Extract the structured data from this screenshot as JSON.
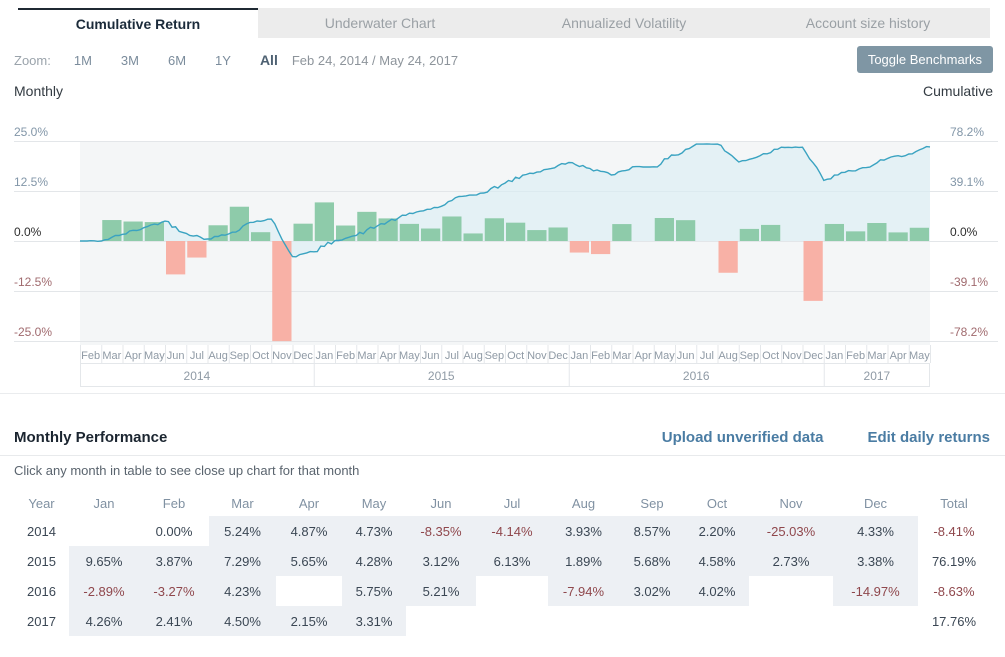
{
  "tabs": [
    {
      "label": "Cumulative Return",
      "active": true
    },
    {
      "label": "Underwater Chart",
      "active": false
    },
    {
      "label": "Annualized Volatility",
      "active": false
    },
    {
      "label": "Account size history",
      "active": false
    }
  ],
  "toolbar": {
    "zoom_label": "Zoom:",
    "zoom_options": [
      "1M",
      "3M",
      "6M",
      "1Y",
      "All"
    ],
    "active_zoom": "All",
    "date_range": "Feb 24, 2014 / May 24, 2017",
    "toggle_benchmarks": "Toggle Benchmarks"
  },
  "colors": {
    "positive_bar": "#8ecbaa",
    "negative_bar": "#f8b1a6",
    "line": "#3aa3c1",
    "area": "#d7ecf4",
    "plot_bg": "#f4f6f7",
    "gridline": "#e3e6e9",
    "tick_positive": "#8296a8",
    "tick_zero": "#2e2e2e",
    "tick_negative": "#a06a6e",
    "axis_label": "#8f9aa5",
    "link": "#4a7ca3",
    "negative_text": "#8f474c"
  },
  "chart_data": [
    {
      "type": "bar",
      "name": "Monthly Return",
      "ylabel": "Monthly",
      "ylim": [
        -27,
        27
      ],
      "yticks": [
        "25.0%",
        "12.5%",
        "0.0%",
        "-12.5%",
        "-25.0%"
      ],
      "categories": [
        "Feb",
        "Mar",
        "Apr",
        "May",
        "Jun",
        "Jul",
        "Aug",
        "Sep",
        "Oct",
        "Nov",
        "Dec",
        "Jan",
        "Feb",
        "Mar",
        "Apr",
        "May",
        "Jun",
        "Jul",
        "Aug",
        "Sep",
        "Oct",
        "Nov",
        "Dec",
        "Jan",
        "Feb",
        "Mar",
        "Apr",
        "May",
        "Jun",
        "Jul",
        "Aug",
        "Sep",
        "Oct",
        "Nov",
        "Dec",
        "Jan",
        "Feb",
        "Mar",
        "Apr",
        "May"
      ],
      "year_groups": [
        {
          "label": "2014",
          "months": 11
        },
        {
          "label": "2015",
          "months": 12
        },
        {
          "label": "2016",
          "months": 12
        },
        {
          "label": "2017",
          "months": 5
        }
      ],
      "values": [
        0.0,
        5.24,
        4.87,
        4.73,
        -8.35,
        -4.14,
        3.93,
        8.57,
        2.2,
        -25.03,
        4.33,
        9.65,
        3.87,
        7.29,
        5.65,
        4.28,
        3.12,
        6.13,
        1.89,
        5.68,
        4.58,
        2.73,
        3.38,
        -2.89,
        -3.27,
        4.23,
        null,
        5.75,
        5.21,
        null,
        -7.94,
        3.02,
        4.02,
        null,
        -14.97,
        4.26,
        2.41,
        4.5,
        2.15,
        3.31
      ]
    },
    {
      "type": "line",
      "name": "Cumulative Return",
      "ylabel": "Cumulative",
      "ylim": [
        -84,
        84
      ],
      "yticks": [
        "78.2%",
        "39.1%",
        "0.0%",
        "-39.1%",
        "-78.2%"
      ],
      "values": [
        0.0,
        5.24,
        10.37,
        15.58,
        5.93,
        1.55,
        5.54,
        14.58,
        17.1,
        -12.21,
        -8.41,
        0.43,
        4.32,
        11.92,
        18.25,
        23.31,
        27.16,
        34.95,
        37.5,
        45.31,
        51.97,
        56.12,
        61.4,
        56.73,
        51.61,
        58.02,
        58.02,
        67.11,
        75.81,
        75.81,
        61.79,
        66.68,
        73.38,
        73.38,
        47.42,
        53.7,
        57.41,
        64.49,
        68.03,
        73.6
      ]
    }
  ],
  "performance": {
    "title": "Monthly Performance",
    "links": [
      "Upload unverified data",
      "Edit daily returns"
    ],
    "subtitle": "Click any month in table to see close up chart for that month",
    "columns": [
      "Year",
      "Jan",
      "Feb",
      "Mar",
      "Apr",
      "May",
      "Jun",
      "Jul",
      "Aug",
      "Sep",
      "Oct",
      "Nov",
      "Dec",
      "Total"
    ],
    "rows": [
      {
        "year": "2014",
        "values": [
          "",
          "0.00%",
          "5.24%",
          "4.87%",
          "4.73%",
          "-8.35%",
          "-4.14%",
          "3.93%",
          "8.57%",
          "2.20%",
          "-25.03%",
          "4.33%"
        ],
        "shaded": [
          false,
          false,
          true,
          true,
          true,
          true,
          true,
          true,
          true,
          true,
          true,
          true
        ],
        "total": "-8.41%"
      },
      {
        "year": "2015",
        "values": [
          "9.65%",
          "3.87%",
          "7.29%",
          "5.65%",
          "4.28%",
          "3.12%",
          "6.13%",
          "1.89%",
          "5.68%",
          "4.58%",
          "2.73%",
          "3.38%"
        ],
        "shaded": [
          true,
          true,
          true,
          true,
          true,
          true,
          true,
          true,
          true,
          true,
          true,
          true
        ],
        "total": "76.19%"
      },
      {
        "year": "2016",
        "values": [
          "-2.89%",
          "-3.27%",
          "4.23%",
          "",
          "5.75%",
          "5.21%",
          "",
          "-7.94%",
          "3.02%",
          "4.02%",
          "",
          "-14.97%"
        ],
        "shaded": [
          true,
          true,
          true,
          false,
          true,
          true,
          false,
          true,
          true,
          true,
          false,
          true
        ],
        "total": "-8.63%"
      },
      {
        "year": "2017",
        "values": [
          "4.26%",
          "2.41%",
          "4.50%",
          "2.15%",
          "3.31%",
          "",
          "",
          "",
          "",
          "",
          "",
          ""
        ],
        "shaded": [
          true,
          true,
          true,
          true,
          true,
          false,
          false,
          false,
          false,
          false,
          false,
          false
        ],
        "total": "17.76%"
      }
    ]
  }
}
